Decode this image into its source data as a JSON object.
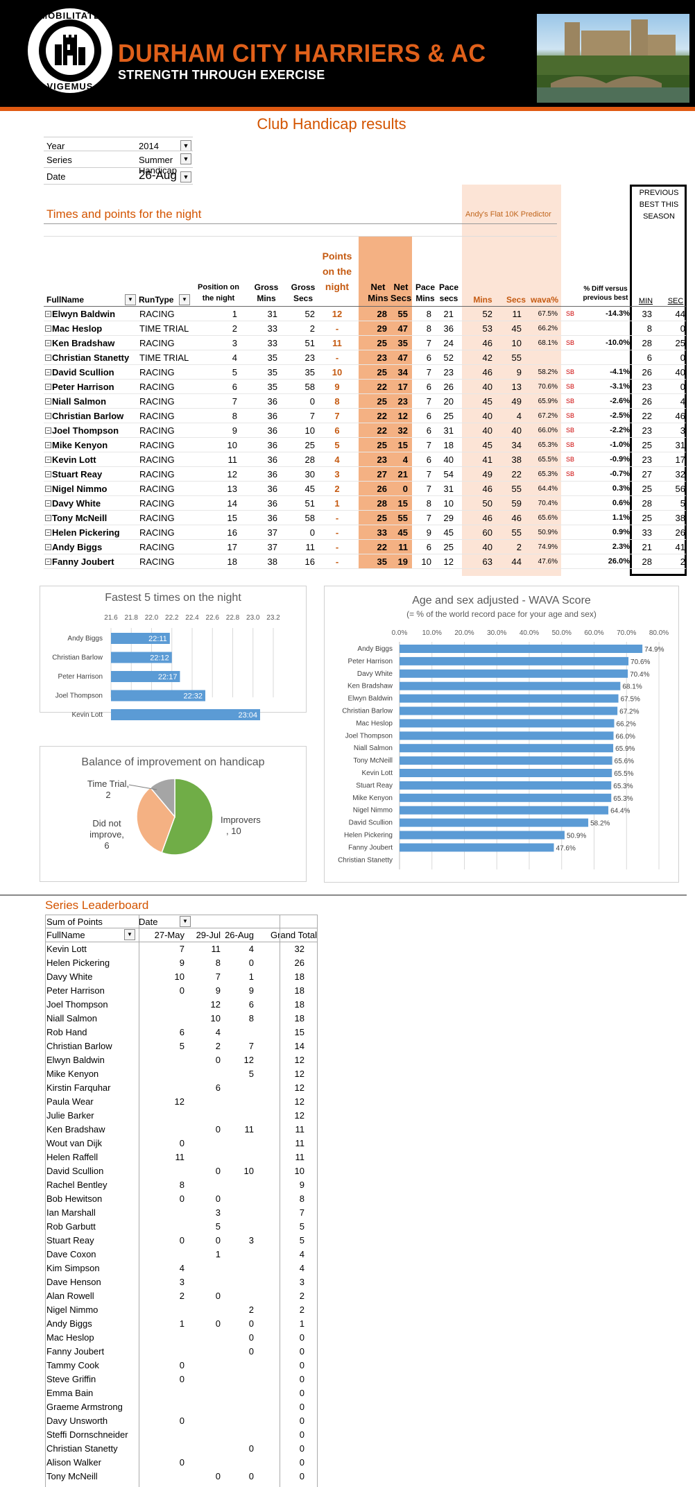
{
  "header": {
    "logo_top": "MOBILITATE",
    "logo_bottom": "VIGEMUS",
    "club_name": "DURHAM CITY HARRIERS & AC",
    "tagline": "STRENGTH THROUGH EXERCISE"
  },
  "page_title": "Club Handicap results",
  "filters": [
    {
      "label": "Year",
      "value": "2014"
    },
    {
      "label": "Series",
      "value": "Summer Handicap"
    },
    {
      "label": "Date",
      "value": "26-Aug"
    }
  ],
  "results": {
    "section_title": "Times and points for the night",
    "predictor_label": "Andy's Flat 10K Predictor",
    "previous_best_title": "PREVIOUS BEST THIS SEASON",
    "headers": {
      "fullname": "FullName",
      "runtype": "RunType",
      "position": "Position on the night",
      "gross_mins": "Gross Mins",
      "gross_secs": "Gross Secs",
      "points": "Points on the night",
      "net_mins": "Net Mins",
      "net_secs": "Net Secs",
      "pace_mins": "Pace Mins",
      "pace_secs": "Pace secs",
      "pred_mins": "Mins",
      "pred_secs": "Secs",
      "wava": "wava%",
      "diff": "% Diff versus previous best",
      "min": "MIN",
      "sec": "SEC"
    },
    "rows": [
      {
        "name": "Elwyn Baldwin",
        "type": "RACING",
        "pos": "1",
        "gm": "31",
        "gs": "52",
        "pts": "12",
        "nm": "28",
        "ns": "55",
        "pm": "8",
        "ps": "21",
        "mm": "52",
        "ss": "11",
        "wava": "67.5%",
        "sb": "SB",
        "diff": "-14.3%",
        "min": "33",
        "sec": "44"
      },
      {
        "name": "Mac Heslop",
        "type": "TIME TRIAL",
        "pos": "2",
        "gm": "33",
        "gs": "2",
        "pts": "-",
        "nm": "29",
        "ns": "47",
        "pm": "8",
        "ps": "36",
        "mm": "53",
        "ss": "45",
        "wava": "66.2%",
        "sb": "",
        "diff": "",
        "min": "8",
        "sec": "0"
      },
      {
        "name": "Ken Bradshaw",
        "type": "RACING",
        "pos": "3",
        "gm": "33",
        "gs": "51",
        "pts": "11",
        "nm": "25",
        "ns": "35",
        "pm": "7",
        "ps": "24",
        "mm": "46",
        "ss": "10",
        "wava": "68.1%",
        "sb": "SB",
        "diff": "-10.0%",
        "min": "28",
        "sec": "25"
      },
      {
        "name": "Christian Stanetty",
        "type": "TIME TRIAL",
        "pos": "4",
        "gm": "35",
        "gs": "23",
        "pts": "-",
        "nm": "23",
        "ns": "47",
        "pm": "6",
        "ps": "52",
        "mm": "42",
        "ss": "55",
        "wava": "",
        "sb": "",
        "diff": "",
        "min": "6",
        "sec": "0"
      },
      {
        "name": "David Scullion",
        "type": "RACING",
        "pos": "5",
        "gm": "35",
        "gs": "35",
        "pts": "10",
        "nm": "25",
        "ns": "34",
        "pm": "7",
        "ps": "23",
        "mm": "46",
        "ss": "9",
        "wava": "58.2%",
        "sb": "SB",
        "diff": "-4.1%",
        "min": "26",
        "sec": "40"
      },
      {
        "name": "Peter Harrison",
        "type": "RACING",
        "pos": "6",
        "gm": "35",
        "gs": "58",
        "pts": "9",
        "nm": "22",
        "ns": "17",
        "pm": "6",
        "ps": "26",
        "mm": "40",
        "ss": "13",
        "wava": "70.6%",
        "sb": "SB",
        "diff": "-3.1%",
        "min": "23",
        "sec": "0"
      },
      {
        "name": "Niall Salmon",
        "type": "RACING",
        "pos": "7",
        "gm": "36",
        "gs": "0",
        "pts": "8",
        "nm": "25",
        "ns": "23",
        "pm": "7",
        "ps": "20",
        "mm": "45",
        "ss": "49",
        "wava": "65.9%",
        "sb": "SB",
        "diff": "-2.6%",
        "min": "26",
        "sec": "4"
      },
      {
        "name": "Christian Barlow",
        "type": "RACING",
        "pos": "8",
        "gm": "36",
        "gs": "7",
        "pts": "7",
        "nm": "22",
        "ns": "12",
        "pm": "6",
        "ps": "25",
        "mm": "40",
        "ss": "4",
        "wava": "67.2%",
        "sb": "SB",
        "diff": "-2.5%",
        "min": "22",
        "sec": "46"
      },
      {
        "name": "Joel Thompson",
        "type": "RACING",
        "pos": "9",
        "gm": "36",
        "gs": "10",
        "pts": "6",
        "nm": "22",
        "ns": "32",
        "pm": "6",
        "ps": "31",
        "mm": "40",
        "ss": "40",
        "wava": "66.0%",
        "sb": "SB",
        "diff": "-2.2%",
        "min": "23",
        "sec": "3"
      },
      {
        "name": "Mike Kenyon",
        "type": "RACING",
        "pos": "10",
        "gm": "36",
        "gs": "25",
        "pts": "5",
        "nm": "25",
        "ns": "15",
        "pm": "7",
        "ps": "18",
        "mm": "45",
        "ss": "34",
        "wava": "65.3%",
        "sb": "SB",
        "diff": "-1.0%",
        "min": "25",
        "sec": "31"
      },
      {
        "name": "Kevin Lott",
        "type": "RACING",
        "pos": "11",
        "gm": "36",
        "gs": "28",
        "pts": "4",
        "nm": "23",
        "ns": "4",
        "pm": "6",
        "ps": "40",
        "mm": "41",
        "ss": "38",
        "wava": "65.5%",
        "sb": "SB",
        "diff": "-0.9%",
        "min": "23",
        "sec": "17"
      },
      {
        "name": "Stuart Reay",
        "type": "RACING",
        "pos": "12",
        "gm": "36",
        "gs": "30",
        "pts": "3",
        "nm": "27",
        "ns": "21",
        "pm": "7",
        "ps": "54",
        "mm": "49",
        "ss": "22",
        "wava": "65.3%",
        "sb": "SB",
        "diff": "-0.7%",
        "min": "27",
        "sec": "32"
      },
      {
        "name": "Nigel Nimmo",
        "type": "RACING",
        "pos": "13",
        "gm": "36",
        "gs": "45",
        "pts": "2",
        "nm": "26",
        "ns": "0",
        "pm": "7",
        "ps": "31",
        "mm": "46",
        "ss": "55",
        "wava": "64.4%",
        "sb": "",
        "diff": "0.3%",
        "min": "25",
        "sec": "56"
      },
      {
        "name": "Davy White",
        "type": "RACING",
        "pos": "14",
        "gm": "36",
        "gs": "51",
        "pts": "1",
        "nm": "28",
        "ns": "15",
        "pm": "8",
        "ps": "10",
        "mm": "50",
        "ss": "59",
        "wava": "70.4%",
        "sb": "",
        "diff": "0.6%",
        "min": "28",
        "sec": "5"
      },
      {
        "name": "Tony McNeill",
        "type": "RACING",
        "pos": "15",
        "gm": "36",
        "gs": "58",
        "pts": "-",
        "nm": "25",
        "ns": "55",
        "pm": "7",
        "ps": "29",
        "mm": "46",
        "ss": "46",
        "wava": "65.6%",
        "sb": "",
        "diff": "1.1%",
        "min": "25",
        "sec": "38"
      },
      {
        "name": "Helen Pickering",
        "type": "RACING",
        "pos": "16",
        "gm": "37",
        "gs": "0",
        "pts": "-",
        "nm": "33",
        "ns": "45",
        "pm": "9",
        "ps": "45",
        "mm": "60",
        "ss": "55",
        "wava": "50.9%",
        "sb": "",
        "diff": "0.9%",
        "min": "33",
        "sec": "26"
      },
      {
        "name": "Andy Biggs",
        "type": "RACING",
        "pos": "17",
        "gm": "37",
        "gs": "11",
        "pts": "-",
        "nm": "22",
        "ns": "11",
        "pm": "6",
        "ps": "25",
        "mm": "40",
        "ss": "2",
        "wava": "74.9%",
        "sb": "",
        "diff": "2.3%",
        "min": "21",
        "sec": "41"
      },
      {
        "name": "Fanny Joubert",
        "type": "RACING",
        "pos": "18",
        "gm": "38",
        "gs": "16",
        "pts": "-",
        "nm": "35",
        "ns": "19",
        "pm": "10",
        "ps": "12",
        "mm": "63",
        "ss": "44",
        "wava": "47.6%",
        "sb": "",
        "diff": "26.0%",
        "min": "28",
        "sec": "2"
      }
    ]
  },
  "chart_data": [
    {
      "type": "bar",
      "orientation": "horizontal",
      "title": "Fastest 5 times on the night",
      "categories": [
        "Andy Biggs",
        "Christian Barlow",
        "Peter Harrison",
        "Joel Thompson",
        "Kevin Lott"
      ],
      "values": [
        22.18,
        22.2,
        22.28,
        22.53,
        23.07
      ],
      "data_labels": [
        "22:11",
        "22:12",
        "22:17",
        "22:32",
        "23:04"
      ],
      "xlim": [
        21.6,
        23.2
      ],
      "ticks": [
        "21.6",
        "21.8",
        "22.0",
        "22.2",
        "22.4",
        "22.6",
        "22.8",
        "23.0",
        "23.2"
      ],
      "grid": true,
      "color": "#5b9bd5"
    },
    {
      "type": "bar",
      "orientation": "horizontal",
      "title": "Age and sex adjusted - WAVA Score",
      "subtitle": "(= % of the world record pace for your age and sex)",
      "categories": [
        "Andy Biggs",
        "Peter Harrison",
        "Davy White",
        "Ken Bradshaw",
        "Elwyn Baldwin",
        "Christian Barlow",
        "Mac Heslop",
        "Joel Thompson",
        "Niall Salmon",
        "Tony McNeill",
        "Kevin Lott",
        "Stuart Reay",
        "Mike Kenyon",
        "Nigel Nimmo",
        "David Scullion",
        "Helen Pickering",
        "Fanny Joubert",
        "Christian Stanetty"
      ],
      "values": [
        74.9,
        70.6,
        70.4,
        68.1,
        67.5,
        67.2,
        66.2,
        66.0,
        65.9,
        65.6,
        65.5,
        65.3,
        65.3,
        64.4,
        58.2,
        50.9,
        47.6,
        null
      ],
      "data_labels": [
        "74.9%",
        "70.6%",
        "70.4%",
        "68.1%",
        "67.5%",
        "67.2%",
        "66.2%",
        "66.0%",
        "65.9%",
        "65.6%",
        "65.5%",
        "65.3%",
        "65.3%",
        "64.4%",
        "58.2%",
        "50.9%",
        "47.6%",
        ""
      ],
      "xlim": [
        0,
        80
      ],
      "ticks": [
        "0.0%",
        "10.0%",
        "20.0%",
        "30.0%",
        "40.0%",
        "50.0%",
        "60.0%",
        "70.0%",
        "80.0%"
      ],
      "grid": true,
      "color": "#5b9bd5"
    },
    {
      "type": "pie",
      "title": "Balance of improvement on handicap",
      "labels": [
        "Improvers",
        "Did not improve",
        "Time Trial"
      ],
      "label_texts": [
        "Improvers , 10",
        "Did not improve, 6",
        "Time Trial, 2"
      ],
      "values": [
        10,
        6,
        2
      ],
      "colors": [
        "#70ad47",
        "#f4b183",
        "#a5a5a5"
      ]
    }
  ],
  "leaderboard": {
    "title": "Series Leaderboard",
    "sum_label": "Sum of Points",
    "date_label": "Date",
    "name_header": "FullName",
    "date_cols": [
      "27-May",
      "29-Jul",
      "26-Aug"
    ],
    "total_header": "Grand Total",
    "rows": [
      [
        "Kevin Lott",
        "7",
        "11",
        "4",
        "32"
      ],
      [
        "Helen Pickering",
        "9",
        "8",
        "0",
        "26"
      ],
      [
        "Davy White",
        "10",
        "7",
        "1",
        "18"
      ],
      [
        "Peter Harrison",
        "0",
        "9",
        "9",
        "18"
      ],
      [
        "Joel Thompson",
        "",
        "12",
        "6",
        "18"
      ],
      [
        "Niall Salmon",
        "",
        "10",
        "8",
        "18"
      ],
      [
        "Rob Hand",
        "6",
        "4",
        "",
        "15"
      ],
      [
        "Christian Barlow",
        "5",
        "2",
        "7",
        "14"
      ],
      [
        "Elwyn Baldwin",
        "",
        "0",
        "12",
        "12"
      ],
      [
        "Mike Kenyon",
        "",
        "",
        "5",
        "12"
      ],
      [
        "Kirstin Farquhar",
        "",
        "6",
        "",
        "12"
      ],
      [
        "Paula Wear",
        "12",
        "",
        "",
        "12"
      ],
      [
        "Julie Barker",
        "",
        "",
        "",
        "12"
      ],
      [
        "Ken Bradshaw",
        "",
        "0",
        "11",
        "11"
      ],
      [
        "Wout van Dijk",
        "0",
        "",
        "",
        "11"
      ],
      [
        "Helen Raffell",
        "11",
        "",
        "",
        "11"
      ],
      [
        "David Scullion",
        "",
        "0",
        "10",
        "10"
      ],
      [
        "Rachel Bentley",
        "8",
        "",
        "",
        "9"
      ],
      [
        "Bob Hewitson",
        "0",
        "0",
        "",
        "8"
      ],
      [
        "Ian Marshall",
        "",
        "3",
        "",
        "7"
      ],
      [
        "Rob Garbutt",
        "",
        "5",
        "",
        "5"
      ],
      [
        "Stuart Reay",
        "0",
        "0",
        "3",
        "5"
      ],
      [
        "Dave Coxon",
        "",
        "1",
        "",
        "4"
      ],
      [
        "Kim Simpson",
        "4",
        "",
        "",
        "4"
      ],
      [
        "Dave Henson",
        "3",
        "",
        "",
        "3"
      ],
      [
        "Alan Rowell",
        "2",
        "0",
        "",
        "2"
      ],
      [
        "Nigel Nimmo",
        "",
        "",
        "2",
        "2"
      ],
      [
        "Andy Biggs",
        "1",
        "0",
        "0",
        "1"
      ],
      [
        "Mac Heslop",
        "",
        "",
        "0",
        "0"
      ],
      [
        "Fanny Joubert",
        "",
        "",
        "0",
        "0"
      ],
      [
        "Tammy Cook",
        "0",
        "",
        "",
        "0"
      ],
      [
        "Steve Griffin",
        "0",
        "",
        "",
        "0"
      ],
      [
        "Emma Bain",
        "",
        "",
        "",
        "0"
      ],
      [
        "Graeme Armstrong",
        "",
        "",
        "",
        "0"
      ],
      [
        "Davy Unsworth",
        "0",
        "",
        "",
        "0"
      ],
      [
        "Steffi Dornschneider",
        "",
        "",
        "",
        "0"
      ],
      [
        "Christian Stanetty",
        "",
        "",
        "0",
        "0"
      ],
      [
        "Alison Walker",
        "0",
        "",
        "",
        "0"
      ],
      [
        "Tony McNeill",
        "",
        "0",
        "0",
        "0"
      ]
    ]
  }
}
